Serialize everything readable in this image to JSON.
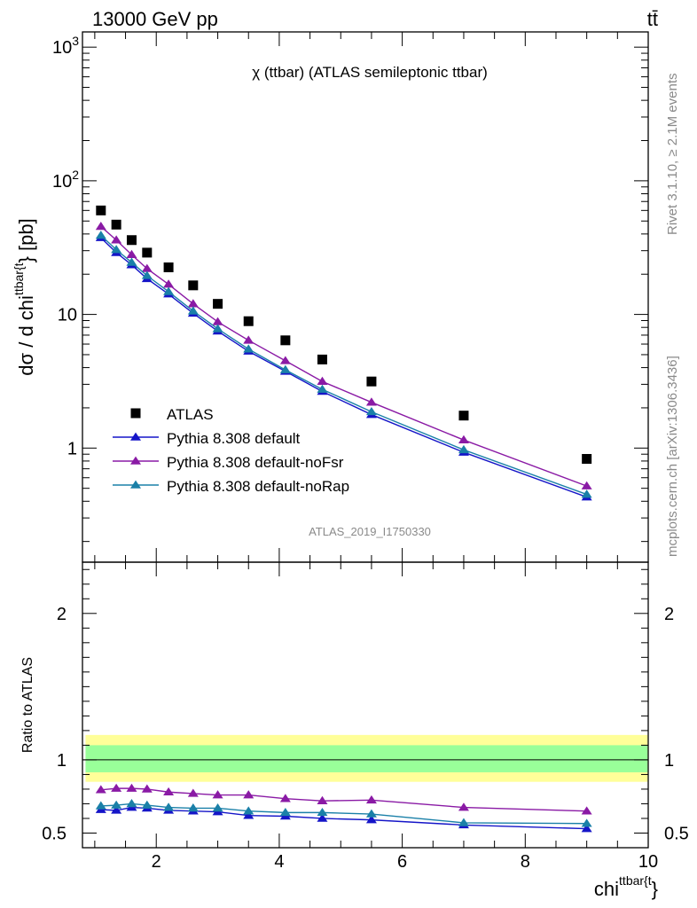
{
  "header": {
    "left": "13000 GeV pp",
    "right": "tt̄"
  },
  "side_text": {
    "rivet": "Rivet 3.1.10, ≥ 2.1M events",
    "mcplots": "mcplots.cern.ch [arXiv:1306.3436]"
  },
  "chart_data": [
    {
      "type": "scatter",
      "title": "χ (ttbar) (ATLAS semileptonic ttbar)",
      "watermark": "ATLAS_2019_I1750330",
      "ylabel": "dσ / d chi^{ttbar{t}} [pb]",
      "ylabel_parts": {
        "main": "dσ / d chi",
        "sup": "ttbar{t",
        "tail": "} [pb]"
      },
      "yscale": "log",
      "ylim": [
        0.14,
        1300
      ],
      "xlim": [
        0.8,
        10.0
      ],
      "y_ticks": [
        {
          "value": 1,
          "label": "1"
        },
        {
          "value": 10,
          "label": "10"
        },
        {
          "value": 100,
          "label": "10",
          "exp": "2"
        },
        {
          "value": 1000,
          "label": "10",
          "exp": "3"
        }
      ],
      "x": [
        1.1,
        1.35,
        1.6,
        1.85,
        2.2,
        2.6,
        3.0,
        3.5,
        4.1,
        4.7,
        5.5,
        7.0,
        9.0
      ],
      "legend_position": "lower-left",
      "series": [
        {
          "name": "ATLAS",
          "marker": "square",
          "color": "#000000",
          "values": [
            60,
            47,
            36,
            29,
            22.5,
            16.5,
            12,
            8.9,
            6.4,
            4.6,
            3.15,
            1.75,
            0.83
          ]
        },
        {
          "name": "Pythia 8.308 default",
          "marker": "triangle",
          "color": "#1515c8",
          "values": [
            37.5,
            29,
            23.5,
            18.5,
            14.2,
            10.2,
            7.5,
            5.3,
            3.75,
            2.65,
            1.78,
            0.93,
            0.43
          ]
        },
        {
          "name": "Pythia 8.308 default-noFsr",
          "marker": "triangle",
          "color": "#8a1aa5",
          "values": [
            45.5,
            36,
            28,
            22,
            16.8,
            12,
            8.8,
            6.4,
            4.5,
            3.15,
            2.2,
            1.15,
            0.52
          ]
        },
        {
          "name": "Pythia 8.308 default-noRap",
          "marker": "triangle",
          "color": "#1a80a8",
          "values": [
            39,
            30.5,
            24.5,
            19.5,
            14.8,
            10.6,
            7.8,
            5.5,
            3.85,
            2.75,
            1.87,
            0.97,
            0.45
          ]
        }
      ]
    },
    {
      "type": "line",
      "ylabel": "Ratio to ATLAS",
      "xlabel": "chi^{ttbar{t}}",
      "xlabel_parts": {
        "main": "chi",
        "sup": "ttbar{t",
        "tail": "}"
      },
      "ylim": [
        0.4,
        2.35
      ],
      "xlim": [
        0.8,
        10.0
      ],
      "y_ticks": [
        0.5,
        1,
        2
      ],
      "x_ticks": [
        2,
        4,
        6,
        8,
        10
      ],
      "x": [
        1.1,
        1.35,
        1.6,
        1.85,
        2.2,
        2.6,
        3.0,
        3.5,
        4.1,
        4.7,
        5.5,
        7.0,
        9.0
      ],
      "bands": {
        "stat_sys_outer": {
          "color": "#ffff99",
          "lo": 0.85,
          "hi": 1.17
        },
        "stat_inner": {
          "color": "#99ff99",
          "lo": 0.915,
          "hi": 1.1
        }
      },
      "series": [
        {
          "name": "Pythia 8.308 default",
          "color": "#1515c8",
          "values": [
            0.66,
            0.655,
            0.675,
            0.67,
            0.655,
            0.65,
            0.645,
            0.62,
            0.615,
            0.6,
            0.59,
            0.555,
            0.53
          ]
        },
        {
          "name": "Pythia 8.308 default-noFsr",
          "color": "#8a1aa5",
          "values": [
            0.795,
            0.805,
            0.805,
            0.8,
            0.78,
            0.77,
            0.76,
            0.76,
            0.735,
            0.72,
            0.725,
            0.675,
            0.65
          ]
        },
        {
          "name": "Pythia 8.308 default-noRap",
          "color": "#1a80a8",
          "values": [
            0.685,
            0.69,
            0.7,
            0.69,
            0.675,
            0.67,
            0.67,
            0.65,
            0.64,
            0.64,
            0.63,
            0.57,
            0.565
          ]
        }
      ]
    }
  ]
}
